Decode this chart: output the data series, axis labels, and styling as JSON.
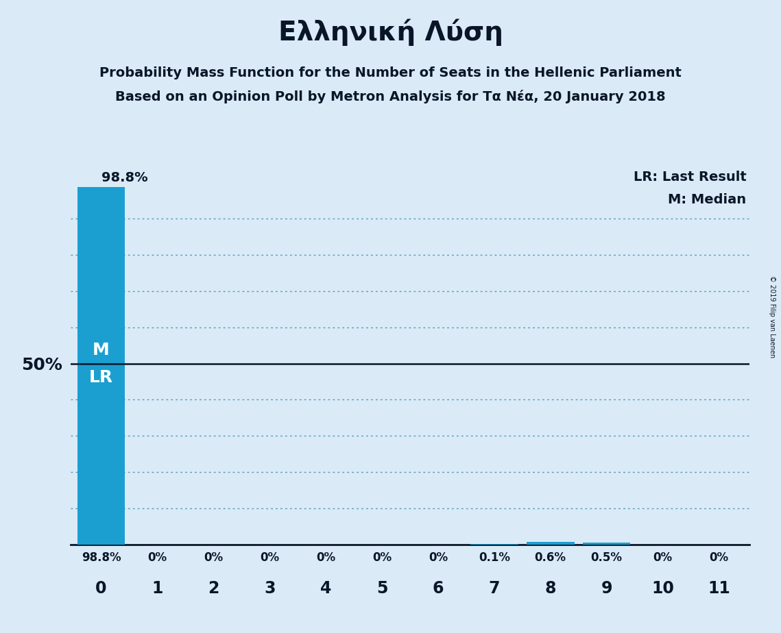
{
  "title": "Ελληνική Λύση",
  "subtitle1": "Probability Mass Function for the Number of Seats in the Hellenic Parliament",
  "subtitle2": "Based on an Opinion Poll by Metron Analysis for Tα Nέα, 20 January 2018",
  "x_values": [
    0,
    1,
    2,
    3,
    4,
    5,
    6,
    7,
    8,
    9,
    10,
    11
  ],
  "y_values": [
    0.988,
    0.0,
    0.0,
    0.0,
    0.0,
    0.0,
    0.0,
    0.001,
    0.006,
    0.005,
    0.0,
    0.0
  ],
  "bar_labels": [
    "98.8%",
    "0%",
    "0%",
    "0%",
    "0%",
    "0%",
    "0%",
    "0.1%",
    "0.6%",
    "0.5%",
    "0%",
    "0%"
  ],
  "bar_color": "#1a9fd0",
  "bg_color": "#daeaf7",
  "text_color": "#0a1628",
  "ylabel_text": "50%",
  "hline_value": 0.5,
  "median_seat": 0,
  "last_result_seat": 0,
  "legend_lr": "LR: Last Result",
  "legend_m": "M: Median",
  "copyright": "© 2019 Filip van Laenen",
  "ylim": [
    0,
    1.05
  ],
  "xlim": [
    -0.55,
    11.55
  ],
  "grid_lines": [
    0.1,
    0.2,
    0.3,
    0.4,
    0.6,
    0.7,
    0.8,
    0.9
  ]
}
